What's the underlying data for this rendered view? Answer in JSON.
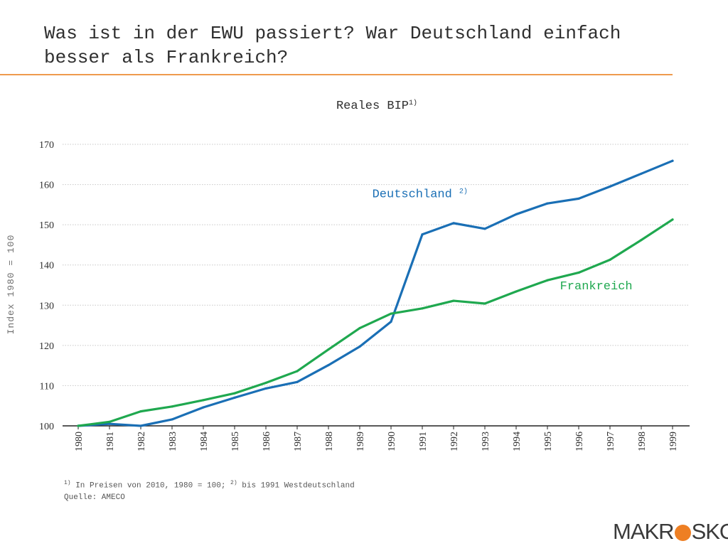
{
  "slide": {
    "title": "Was ist in der EWU passiert? War Deutschland einfach besser als Frankreich?"
  },
  "chart_data": {
    "type": "line",
    "title": "Reales BIP",
    "title_superscript": "1)",
    "ylabel": "Index 1980 = 100",
    "xlabel": "",
    "ylim": [
      100,
      170
    ],
    "yticks": [
      "100",
      "110",
      "120",
      "130",
      "140",
      "150",
      "160",
      "170"
    ],
    "grid": true,
    "categories": [
      "1980",
      "1981",
      "1982",
      "1983",
      "1984",
      "1985",
      "1986",
      "1987",
      "1988",
      "1989",
      "1990",
      "1991",
      "1992",
      "1993",
      "1994",
      "1995",
      "1996",
      "1997",
      "1998",
      "1999"
    ],
    "series": [
      {
        "name": "Deutschland",
        "name_superscript": "2)",
        "color": "#1a6fb5",
        "values": [
          100.0,
          100.5,
          100.0,
          101.6,
          104.6,
          107.0,
          109.3,
          110.9,
          115.1,
          119.7,
          125.9,
          147.6,
          150.4,
          149.0,
          152.6,
          155.3,
          156.5,
          159.5,
          162.7,
          165.9
        ]
      },
      {
        "name": "Frankreich",
        "name_superscript": "",
        "color": "#1fa84f",
        "values": [
          100.0,
          101.0,
          103.6,
          104.8,
          106.4,
          108.1,
          110.7,
          113.6,
          119.0,
          124.3,
          127.9,
          129.2,
          131.1,
          130.4,
          133.4,
          136.2,
          138.1,
          141.3,
          146.2,
          151.3
        ]
      }
    ]
  },
  "footnotes": {
    "line1_mark1": "1)",
    "line1_text1": " In Preisen von 2010, 1980 = 100; ",
    "line1_mark2": "2)",
    "line1_text2": " bis 1991 Westdeutschland",
    "line2": "Quelle: AMECO"
  },
  "logo": {
    "part1": "MAKR",
    "part2": "SKOP"
  }
}
